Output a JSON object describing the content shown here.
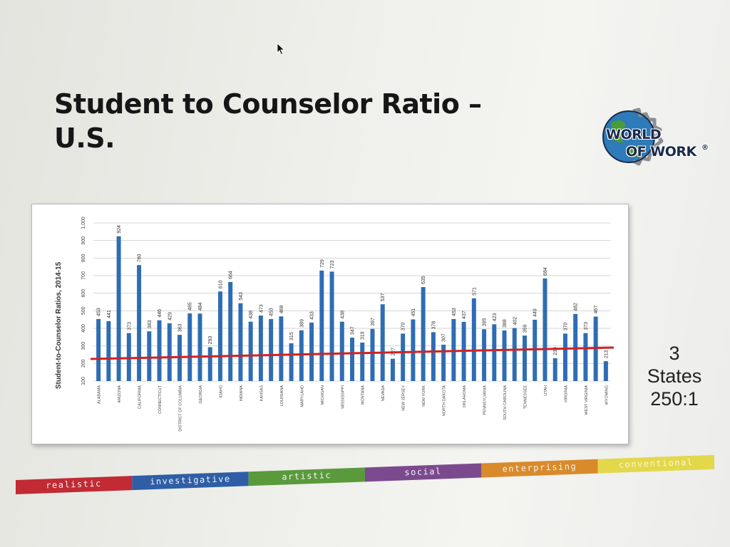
{
  "slide": {
    "title_line1": "Student to Counselor Ratio –",
    "title_line2": "U.S.",
    "logo": {
      "line1": "WORLD",
      "line2": "OF WORK",
      "mark": "®",
      "icon": "globe-gear-icon"
    },
    "side_note": {
      "line1": "3",
      "line2": "States",
      "line3": "250:1"
    }
  },
  "color_band": [
    {
      "label": "realistic",
      "color": "#c22a34"
    },
    {
      "label": "investigative",
      "color": "#2f5ea6"
    },
    {
      "label": "artistic",
      "color": "#5a9a3c"
    },
    {
      "label": "social",
      "color": "#7b4a8e"
    },
    {
      "label": "enterprising",
      "color": "#d98a2a"
    },
    {
      "label": "conventional",
      "color": "#e3d84a"
    }
  ],
  "chart_data": {
    "type": "bar",
    "ylabel": "Student-to-Counselor Ratios, 2014-15",
    "ylim": [
      100,
      1000
    ],
    "yticks": [
      "100",
      "200",
      "300",
      "400",
      "500",
      "600",
      "700",
      "800",
      "900",
      "1,000"
    ],
    "grid": true,
    "bar_color": "#2e6db4",
    "reference_line": {
      "value": 250,
      "color": "#d02222"
    },
    "categories": [
      "ALABAMA",
      "",
      "ARIZONA",
      "",
      "CALIFORNIA",
      "",
      "CONNECTICUT",
      "",
      "DISTRICT OF COLUMBIA",
      "",
      "GEORGIA",
      "",
      "IDAHO",
      "",
      "INDIANA",
      "",
      "KANSAS",
      "",
      "LOUISIANA",
      "",
      "MARYLAND",
      "",
      "MICHIGAN",
      "",
      "MISSISSIPPI",
      "",
      "MONTANA",
      "",
      "NEVADA",
      "",
      "NEW JERSEY",
      "",
      "NEW YORK",
      "",
      "NORTH DAKOTA",
      "",
      "OKLAHOMA",
      "",
      "PENNSYLVANIA",
      "",
      "SOUTH CAROLINA",
      "",
      "TENNESSEE",
      "",
      "UTAH",
      "",
      "VIRGINIA",
      "",
      "WEST VIRGINIA",
      "",
      "WYOMING"
    ],
    "values": [
      453,
      441,
      924,
      373,
      760,
      383,
      446,
      429,
      363,
      485,
      484,
      293,
      610,
      664,
      543,
      438,
      473,
      453,
      468,
      315,
      389,
      433,
      729,
      723,
      438,
      347,
      319,
      397,
      537,
      227,
      370,
      451,
      635,
      378,
      307,
      453,
      437,
      571,
      395,
      423,
      388,
      402,
      359,
      449,
      684,
      230,
      370,
      482,
      373,
      467,
      213
    ],
    "value_labels": [
      "453",
      "441",
      "924",
      "373",
      "760",
      "383",
      "446",
      "429",
      "363",
      "485",
      "484",
      "293",
      "610",
      "664",
      "543",
      "438",
      "473",
      "453",
      "468",
      "315",
      "389",
      "433",
      "729",
      "723",
      "438",
      "347",
      "319",
      "397",
      "537",
      "227",
      "370",
      "451",
      "635",
      "378",
      "307",
      "453",
      "437",
      "571",
      "395",
      "423",
      "388",
      "402",
      "359",
      "449",
      "684",
      "230",
      "370",
      "482",
      "373",
      "467",
      "213"
    ]
  }
}
